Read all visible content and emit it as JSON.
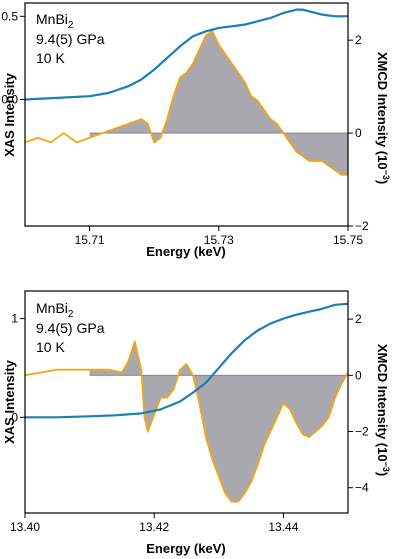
{
  "chart_data": [
    {
      "type": "line",
      "annotation": {
        "formula_base": "MnBi",
        "formula_sub": "2",
        "pressure": "9.4(5) GPa",
        "temperature": "10 K"
      },
      "xlabel": "Energy (keV)",
      "ylabel_left": "XAS Intensity",
      "ylabel_right_prefix": "XMCD Intensity (10",
      "ylabel_right_exp": "−3",
      "ylabel_right_suffix": ")",
      "xlim": [
        15.7,
        15.75
      ],
      "x_ticks": [
        15.71,
        15.73,
        15.75
      ],
      "x_tick_labels": [
        "15.71",
        "15.73",
        "15.75"
      ],
      "y_left_lim": [
        -0.76,
        0.58
      ],
      "y_left_ticks": [
        0.0,
        0.5
      ],
      "y_left_tick_labels": [
        "0.0",
        "0.5"
      ],
      "y_right_lim": [
        -2.0,
        2.8
      ],
      "y_right_ticks": [
        -2,
        0,
        2
      ],
      "y_right_tick_labels": [
        "−2",
        "0",
        "2"
      ],
      "series": [
        {
          "role": "xas",
          "axis": "left",
          "color": "#1a7fb5",
          "x": [
            15.7,
            15.705,
            15.71,
            15.713,
            15.716,
            15.718,
            15.72,
            15.722,
            15.724,
            15.726,
            15.728,
            15.73,
            15.732,
            15.734,
            15.736,
            15.738,
            15.74,
            15.741,
            15.742,
            15.743,
            15.744,
            15.746,
            15.748,
            15.75
          ],
          "y": [
            0.0,
            0.01,
            0.02,
            0.04,
            0.08,
            0.12,
            0.18,
            0.25,
            0.32,
            0.38,
            0.41,
            0.43,
            0.44,
            0.45,
            0.47,
            0.49,
            0.52,
            0.53,
            0.54,
            0.54,
            0.53,
            0.51,
            0.5,
            0.5
          ]
        },
        {
          "role": "xmcd",
          "axis": "right",
          "color": "#f0a818",
          "fill": "#a8a8ae",
          "fill_from": 15.71,
          "x": [
            15.7,
            15.702,
            15.704,
            15.706,
            15.708,
            15.71,
            15.712,
            15.714,
            15.716,
            15.718,
            15.719,
            15.72,
            15.721,
            15.722,
            15.723,
            15.724,
            15.725,
            15.726,
            15.727,
            15.728,
            15.729,
            15.73,
            15.731,
            15.732,
            15.733,
            15.734,
            15.735,
            15.736,
            15.737,
            15.738,
            15.739,
            15.74,
            15.741,
            15.742,
            15.743,
            15.744,
            15.745,
            15.746,
            15.747,
            15.748,
            15.749,
            15.75
          ],
          "y": [
            -0.2,
            -0.1,
            -0.2,
            0.0,
            -0.2,
            -0.1,
            0.0,
            0.1,
            0.2,
            0.3,
            0.2,
            -0.2,
            -0.1,
            0.3,
            0.8,
            1.2,
            1.3,
            1.5,
            1.8,
            2.1,
            2.2,
            1.9,
            1.7,
            1.5,
            1.3,
            1.1,
            0.8,
            0.7,
            0.5,
            0.3,
            0.2,
            0.0,
            -0.2,
            -0.4,
            -0.5,
            -0.6,
            -0.6,
            -0.6,
            -0.7,
            -0.8,
            -0.9,
            -0.9
          ]
        }
      ]
    },
    {
      "type": "line",
      "annotation": {
        "formula_base": "MnBi",
        "formula_sub": "2",
        "pressure": "9.4(5) GPa",
        "temperature": "10 K"
      },
      "xlabel": "Energy (keV)",
      "ylabel_left": "XAS Intensity",
      "ylabel_right_prefix": "XMCD Intensity (10",
      "ylabel_right_exp": "−3",
      "ylabel_right_suffix": ")",
      "xlim": [
        13.4,
        13.45
      ],
      "x_ticks": [
        13.4,
        13.42,
        13.44
      ],
      "x_tick_labels": [
        "13.40",
        "13.42",
        "13.44"
      ],
      "y_left_lim": [
        -0.97,
        1.28
      ],
      "y_left_ticks": [
        0,
        1
      ],
      "y_left_tick_labels": [
        "0",
        "1"
      ],
      "y_right_lim": [
        -4.9,
        3.0
      ],
      "y_right_ticks": [
        -4,
        -2,
        0,
        2
      ],
      "y_right_tick_labels": [
        "−4",
        "−2",
        "0",
        "2"
      ],
      "series": [
        {
          "role": "xas",
          "axis": "left",
          "color": "#1a7fb5",
          "x": [
            13.4,
            13.405,
            13.41,
            13.414,
            13.418,
            13.421,
            13.424,
            13.426,
            13.428,
            13.43,
            13.432,
            13.434,
            13.436,
            13.438,
            13.44,
            13.442,
            13.444,
            13.446,
            13.448,
            13.45
          ],
          "y": [
            0.0,
            0.0,
            0.01,
            0.02,
            0.04,
            0.08,
            0.16,
            0.25,
            0.35,
            0.5,
            0.65,
            0.78,
            0.88,
            0.95,
            1.0,
            1.04,
            1.07,
            1.1,
            1.14,
            1.15
          ]
        },
        {
          "role": "xmcd",
          "axis": "right",
          "color": "#f0a818",
          "fill": "#a8a8ae",
          "fill_from": 13.41,
          "x": [
            13.4,
            13.405,
            13.41,
            13.413,
            13.415,
            13.416,
            13.417,
            13.418,
            13.4185,
            13.419,
            13.42,
            13.421,
            13.422,
            13.423,
            13.424,
            13.425,
            13.426,
            13.427,
            13.428,
            13.429,
            13.43,
            13.431,
            13.432,
            13.433,
            13.434,
            13.435,
            13.436,
            13.437,
            13.438,
            13.439,
            13.44,
            13.441,
            13.442,
            13.443,
            13.444,
            13.445,
            13.446,
            13.447,
            13.448,
            13.449,
            13.45
          ],
          "y": [
            0.0,
            0.2,
            0.2,
            0.2,
            0.1,
            0.5,
            1.2,
            0.2,
            -1.5,
            -2.0,
            -1.4,
            -0.8,
            -0.8,
            -0.5,
            0.2,
            0.4,
            0.0,
            -1.0,
            -2.2,
            -3.0,
            -3.6,
            -4.2,
            -4.5,
            -4.5,
            -4.2,
            -3.8,
            -3.2,
            -2.5,
            -2.0,
            -1.5,
            -1.0,
            -1.2,
            -1.7,
            -2.1,
            -2.2,
            -2.0,
            -1.8,
            -1.5,
            -0.8,
            -0.3,
            0.1
          ]
        }
      ]
    }
  ]
}
